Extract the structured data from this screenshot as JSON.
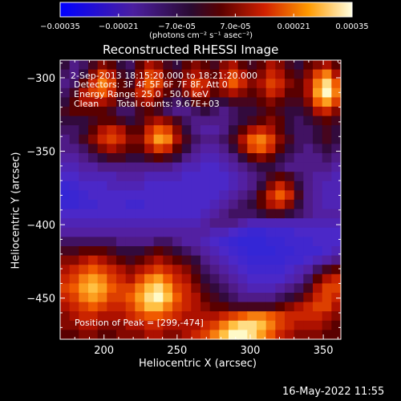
{
  "chart_data": {
    "type": "heatmap",
    "title": "Reconstructed RHESSI Image",
    "xlabel": "Heliocentric X (arcsec)",
    "ylabel": "Heliocentric Y (arcsec)",
    "xlim": [
      170,
      362
    ],
    "ylim": [
      -478,
      -288
    ],
    "x_ticks": [
      200,
      250,
      300,
      350
    ],
    "y_ticks": [
      -300,
      -350,
      -400,
      -450
    ],
    "colorbar": {
      "min": -0.00035,
      "max": 0.00035,
      "tick_values": [
        -0.00035,
        -0.00021,
        -7e-05,
        7e-05,
        0.00021,
        0.00035
      ],
      "tick_labels": [
        "-0.00035",
        "-0.00021",
        "-7.0e-05",
        "7.0e-05",
        "0.00021",
        "0.00035"
      ],
      "unit_label": "(photons cm⁻² s⁻¹ asec⁻²)"
    },
    "annotations": {
      "time_range": "2-Sep-2013 18:15:20.000 to 18:21:20.000",
      "detectors": "Detectors: 3F 4F 5F 6F 7F 8F, Att 0",
      "energy": "Energy Range: 25.0 - 50.0 keV",
      "method": "Clean",
      "counts": "Total counts: 9.67E+03",
      "peak": "Position of Peak = [299,-474]"
    },
    "grid": {
      "rows": 30,
      "cols": 30,
      "values": [
        [
          0.4,
          0.3,
          0.35,
          0.45,
          0.55,
          0.5,
          0.4,
          0.35,
          0.5,
          0.6,
          0.55,
          0.45,
          0.4,
          0.5,
          0.55,
          0.5,
          0.45,
          0.55,
          0.6,
          0.5,
          0.45,
          0.5,
          0.6,
          0.55,
          0.45,
          0.4,
          0.5,
          0.55,
          0.6,
          0.5
        ],
        [
          0.35,
          0.3,
          0.4,
          0.55,
          0.7,
          0.6,
          0.45,
          0.4,
          0.55,
          0.7,
          0.65,
          0.5,
          0.45,
          0.55,
          0.6,
          0.55,
          0.5,
          0.6,
          0.7,
          0.6,
          0.5,
          0.55,
          0.65,
          0.6,
          0.5,
          0.45,
          0.55,
          0.7,
          0.8,
          0.6
        ],
        [
          0.3,
          0.35,
          0.5,
          0.65,
          0.8,
          0.7,
          0.5,
          0.45,
          0.6,
          0.75,
          0.7,
          0.55,
          0.5,
          0.6,
          0.7,
          0.65,
          0.55,
          0.65,
          0.75,
          0.65,
          0.55,
          0.6,
          0.7,
          0.65,
          0.55,
          0.5,
          0.6,
          0.8,
          0.95,
          0.75
        ],
        [
          0.35,
          0.45,
          0.6,
          0.7,
          0.75,
          0.65,
          0.5,
          0.5,
          0.65,
          0.7,
          0.6,
          0.5,
          0.45,
          0.55,
          0.65,
          0.6,
          0.5,
          0.55,
          0.6,
          0.55,
          0.5,
          0.55,
          0.65,
          0.6,
          0.5,
          0.5,
          0.6,
          0.85,
          1.0,
          0.8
        ],
        [
          0.4,
          0.5,
          0.6,
          0.6,
          0.6,
          0.55,
          0.45,
          0.45,
          0.55,
          0.6,
          0.5,
          0.4,
          0.35,
          0.4,
          0.5,
          0.5,
          0.4,
          0.4,
          0.45,
          0.45,
          0.45,
          0.5,
          0.55,
          0.5,
          0.45,
          0.45,
          0.55,
          0.75,
          0.85,
          0.7
        ],
        [
          0.45,
          0.5,
          0.5,
          0.5,
          0.5,
          0.45,
          0.35,
          0.35,
          0.45,
          0.5,
          0.45,
          0.35,
          0.3,
          0.3,
          0.35,
          0.4,
          0.35,
          0.3,
          0.35,
          0.4,
          0.4,
          0.45,
          0.5,
          0.45,
          0.4,
          0.4,
          0.45,
          0.6,
          0.65,
          0.55
        ],
        [
          0.4,
          0.4,
          0.4,
          0.45,
          0.5,
          0.5,
          0.45,
          0.4,
          0.45,
          0.55,
          0.6,
          0.55,
          0.45,
          0.35,
          0.3,
          0.3,
          0.3,
          0.3,
          0.35,
          0.4,
          0.45,
          0.5,
          0.55,
          0.5,
          0.4,
          0.35,
          0.4,
          0.45,
          0.5,
          0.45
        ],
        [
          0.35,
          0.35,
          0.4,
          0.5,
          0.6,
          0.65,
          0.6,
          0.5,
          0.5,
          0.65,
          0.75,
          0.7,
          0.55,
          0.4,
          0.3,
          0.25,
          0.25,
          0.3,
          0.4,
          0.5,
          0.6,
          0.65,
          0.6,
          0.5,
          0.4,
          0.35,
          0.35,
          0.4,
          0.45,
          0.4
        ],
        [
          0.3,
          0.35,
          0.45,
          0.55,
          0.65,
          0.7,
          0.65,
          0.55,
          0.55,
          0.7,
          0.85,
          0.8,
          0.6,
          0.45,
          0.35,
          0.3,
          0.3,
          0.35,
          0.45,
          0.6,
          0.75,
          0.8,
          0.7,
          0.55,
          0.45,
          0.35,
          0.35,
          0.4,
          0.45,
          0.4
        ],
        [
          0.3,
          0.3,
          0.35,
          0.45,
          0.55,
          0.6,
          0.55,
          0.5,
          0.5,
          0.6,
          0.7,
          0.65,
          0.5,
          0.4,
          0.3,
          0.25,
          0.25,
          0.3,
          0.4,
          0.55,
          0.7,
          0.75,
          0.65,
          0.5,
          0.4,
          0.35,
          0.3,
          0.35,
          0.4,
          0.35
        ],
        [
          0.25,
          0.25,
          0.3,
          0.35,
          0.4,
          0.45,
          0.45,
          0.4,
          0.4,
          0.45,
          0.5,
          0.45,
          0.4,
          0.3,
          0.25,
          0.2,
          0.2,
          0.25,
          0.3,
          0.4,
          0.5,
          0.55,
          0.5,
          0.4,
          0.35,
          0.3,
          0.3,
          0.3,
          0.35,
          0.3
        ],
        [
          0.2,
          0.2,
          0.25,
          0.25,
          0.3,
          0.3,
          0.3,
          0.3,
          0.3,
          0.3,
          0.3,
          0.3,
          0.25,
          0.2,
          0.2,
          0.15,
          0.15,
          0.2,
          0.25,
          0.3,
          0.35,
          0.4,
          0.4,
          0.35,
          0.3,
          0.3,
          0.3,
          0.3,
          0.3,
          0.25
        ],
        [
          0.15,
          0.15,
          0.2,
          0.2,
          0.2,
          0.2,
          0.25,
          0.25,
          0.25,
          0.2,
          0.2,
          0.2,
          0.2,
          0.15,
          0.15,
          0.15,
          0.15,
          0.15,
          0.2,
          0.25,
          0.3,
          0.35,
          0.45,
          0.5,
          0.45,
          0.35,
          0.3,
          0.25,
          0.25,
          0.2
        ],
        [
          0.1,
          0.12,
          0.15,
          0.15,
          0.15,
          0.2,
          0.2,
          0.2,
          0.2,
          0.15,
          0.15,
          0.15,
          0.15,
          0.15,
          0.15,
          0.15,
          0.15,
          0.15,
          0.2,
          0.25,
          0.3,
          0.4,
          0.55,
          0.65,
          0.55,
          0.4,
          0.3,
          0.25,
          0.2,
          0.2
        ],
        [
          0.08,
          0.1,
          0.12,
          0.15,
          0.15,
          0.15,
          0.15,
          0.15,
          0.15,
          0.15,
          0.15,
          0.15,
          0.15,
          0.15,
          0.15,
          0.15,
          0.15,
          0.2,
          0.25,
          0.3,
          0.35,
          0.5,
          0.65,
          0.75,
          0.65,
          0.45,
          0.3,
          0.25,
          0.2,
          0.2
        ],
        [
          0.1,
          0.1,
          0.12,
          0.12,
          0.15,
          0.15,
          0.15,
          0.12,
          0.12,
          0.15,
          0.15,
          0.15,
          0.15,
          0.15,
          0.15,
          0.15,
          0.2,
          0.25,
          0.3,
          0.35,
          0.4,
          0.5,
          0.6,
          0.65,
          0.55,
          0.4,
          0.3,
          0.25,
          0.2,
          0.2
        ],
        [
          0.15,
          0.15,
          0.15,
          0.15,
          0.15,
          0.15,
          0.15,
          0.15,
          0.15,
          0.15,
          0.15,
          0.15,
          0.15,
          0.15,
          0.15,
          0.2,
          0.25,
          0.3,
          0.35,
          0.35,
          0.35,
          0.4,
          0.45,
          0.45,
          0.4,
          0.35,
          0.3,
          0.25,
          0.25,
          0.25
        ],
        [
          0.2,
          0.2,
          0.2,
          0.2,
          0.2,
          0.2,
          0.2,
          0.2,
          0.2,
          0.2,
          0.2,
          0.2,
          0.2,
          0.2,
          0.2,
          0.25,
          0.3,
          0.3,
          0.3,
          0.25,
          0.2,
          0.2,
          0.2,
          0.2,
          0.2,
          0.2,
          0.2,
          0.2,
          0.2,
          0.2
        ],
        [
          0.25,
          0.25,
          0.25,
          0.25,
          0.25,
          0.25,
          0.25,
          0.25,
          0.25,
          0.25,
          0.25,
          0.25,
          0.25,
          0.25,
          0.25,
          0.25,
          0.2,
          0.2,
          0.15,
          0.12,
          0.1,
          0.1,
          0.12,
          0.12,
          0.12,
          0.15,
          0.15,
          0.15,
          0.15,
          0.15
        ],
        [
          0.35,
          0.35,
          0.35,
          0.35,
          0.35,
          0.35,
          0.3,
          0.3,
          0.3,
          0.3,
          0.35,
          0.35,
          0.3,
          0.25,
          0.25,
          0.2,
          0.15,
          0.12,
          0.1,
          0.08,
          0.08,
          0.08,
          0.1,
          0.1,
          0.12,
          0.12,
          0.12,
          0.15,
          0.15,
          0.15
        ],
        [
          0.45,
          0.45,
          0.5,
          0.5,
          0.5,
          0.45,
          0.4,
          0.4,
          0.4,
          0.45,
          0.5,
          0.45,
          0.4,
          0.35,
          0.3,
          0.25,
          0.2,
          0.15,
          0.12,
          0.1,
          0.08,
          0.08,
          0.08,
          0.1,
          0.1,
          0.12,
          0.12,
          0.12,
          0.15,
          0.2
        ],
        [
          0.55,
          0.55,
          0.6,
          0.65,
          0.6,
          0.55,
          0.5,
          0.45,
          0.5,
          0.55,
          0.6,
          0.55,
          0.5,
          0.45,
          0.4,
          0.3,
          0.25,
          0.2,
          0.15,
          0.12,
          0.1,
          0.1,
          0.1,
          0.1,
          0.12,
          0.12,
          0.15,
          0.2,
          0.25,
          0.3
        ],
        [
          0.6,
          0.65,
          0.7,
          0.75,
          0.7,
          0.65,
          0.6,
          0.55,
          0.6,
          0.65,
          0.7,
          0.65,
          0.6,
          0.55,
          0.45,
          0.35,
          0.3,
          0.25,
          0.2,
          0.15,
          0.12,
          0.12,
          0.12,
          0.12,
          0.15,
          0.2,
          0.25,
          0.35,
          0.45,
          0.5
        ],
        [
          0.65,
          0.7,
          0.8,
          0.85,
          0.8,
          0.7,
          0.65,
          0.6,
          0.7,
          0.8,
          0.85,
          0.75,
          0.65,
          0.6,
          0.5,
          0.4,
          0.35,
          0.3,
          0.25,
          0.2,
          0.15,
          0.15,
          0.15,
          0.15,
          0.2,
          0.25,
          0.35,
          0.5,
          0.6,
          0.65
        ],
        [
          0.7,
          0.75,
          0.85,
          0.9,
          0.85,
          0.75,
          0.7,
          0.7,
          0.8,
          0.9,
          0.95,
          0.85,
          0.7,
          0.65,
          0.55,
          0.45,
          0.4,
          0.35,
          0.3,
          0.25,
          0.2,
          0.2,
          0.2,
          0.25,
          0.3,
          0.35,
          0.45,
          0.6,
          0.7,
          0.7
        ],
        [
          0.65,
          0.7,
          0.8,
          0.85,
          0.8,
          0.7,
          0.7,
          0.75,
          0.85,
          0.95,
          1.0,
          0.9,
          0.75,
          0.65,
          0.6,
          0.5,
          0.45,
          0.4,
          0.35,
          0.3,
          0.3,
          0.3,
          0.3,
          0.35,
          0.4,
          0.45,
          0.55,
          0.65,
          0.7,
          0.65
        ],
        [
          0.6,
          0.65,
          0.7,
          0.75,
          0.7,
          0.65,
          0.65,
          0.7,
          0.8,
          0.9,
          0.9,
          0.8,
          0.7,
          0.65,
          0.6,
          0.55,
          0.5,
          0.5,
          0.45,
          0.45,
          0.45,
          0.45,
          0.45,
          0.5,
          0.55,
          0.6,
          0.65,
          0.7,
          0.7,
          0.6
        ],
        [
          0.55,
          0.6,
          0.65,
          0.65,
          0.6,
          0.6,
          0.6,
          0.65,
          0.7,
          0.75,
          0.75,
          0.7,
          0.65,
          0.6,
          0.6,
          0.6,
          0.6,
          0.65,
          0.7,
          0.75,
          0.8,
          0.8,
          0.75,
          0.7,
          0.65,
          0.65,
          0.65,
          0.65,
          0.6,
          0.55
        ],
        [
          0.55,
          0.55,
          0.6,
          0.6,
          0.55,
          0.55,
          0.55,
          0.6,
          0.6,
          0.65,
          0.65,
          0.6,
          0.6,
          0.6,
          0.6,
          0.65,
          0.7,
          0.8,
          0.9,
          0.95,
          0.95,
          0.9,
          0.8,
          0.7,
          0.65,
          0.6,
          0.6,
          0.6,
          0.55,
          0.5
        ],
        [
          0.5,
          0.5,
          0.55,
          0.55,
          0.5,
          0.5,
          0.55,
          0.55,
          0.55,
          0.6,
          0.6,
          0.55,
          0.55,
          0.6,
          0.65,
          0.7,
          0.8,
          0.9,
          1.0,
          1.0,
          0.95,
          0.85,
          0.75,
          0.65,
          0.6,
          0.55,
          0.55,
          0.55,
          0.5,
          0.5
        ]
      ]
    }
  },
  "footer": {
    "timestamp": "16-May-2022 11:55"
  }
}
